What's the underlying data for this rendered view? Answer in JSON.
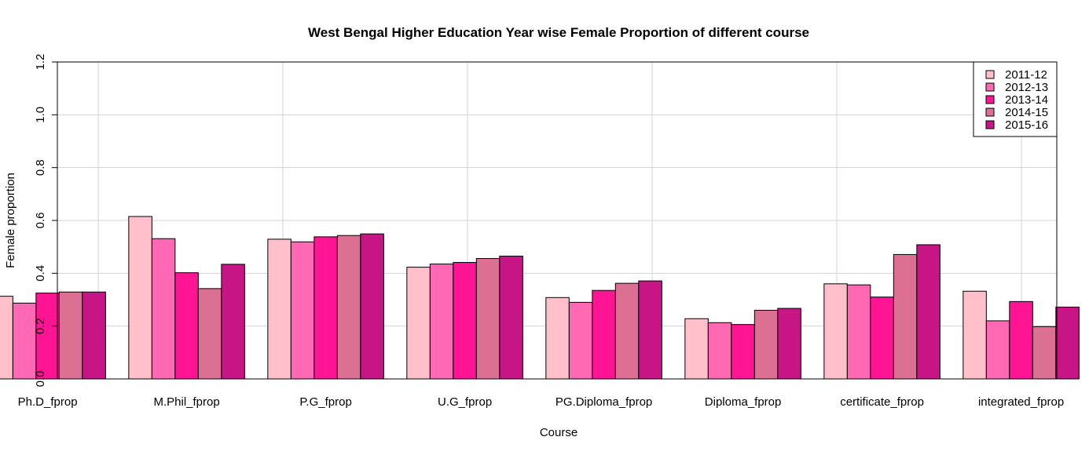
{
  "chart_data": {
    "type": "bar",
    "title": "West Bengal Higher Education Year wise Female Proportion of different course",
    "xlabel": "Course",
    "ylabel": "Female proportion",
    "ylim": [
      0,
      1.2
    ],
    "yticks": [
      "0.0",
      "0.2",
      "0.4",
      "0.6",
      "0.8",
      "1.0",
      "1.2"
    ],
    "grid": true,
    "legend_position": "top-right",
    "categories": [
      "Ph.D_fprop",
      "M.Phil_fprop",
      "P.G_fprop",
      "U.G_fprop",
      "PG.Diploma_fprop",
      "Diploma_fprop",
      "certificate_fprop",
      "integrated_fprop"
    ],
    "series": [
      {
        "name": "2011-12",
        "color": "#FFC0CB",
        "values": [
          0.313,
          0.615,
          0.529,
          0.423,
          0.308,
          0.228,
          0.36,
          0.332
        ]
      },
      {
        "name": "2012-13",
        "color": "#FF69B4",
        "values": [
          0.287,
          0.531,
          0.519,
          0.435,
          0.29,
          0.213,
          0.356,
          0.22
        ]
      },
      {
        "name": "2013-14",
        "color": "#FF1493",
        "values": [
          0.325,
          0.402,
          0.538,
          0.441,
          0.335,
          0.206,
          0.31,
          0.293
        ]
      },
      {
        "name": "2014-15",
        "color": "#DB7093",
        "values": [
          0.329,
          0.342,
          0.543,
          0.456,
          0.362,
          0.26,
          0.471,
          0.198
        ]
      },
      {
        "name": "2015-16",
        "color": "#C71585",
        "values": [
          0.329,
          0.434,
          0.549,
          0.465,
          0.371,
          0.267,
          0.508,
          0.272
        ]
      }
    ]
  }
}
